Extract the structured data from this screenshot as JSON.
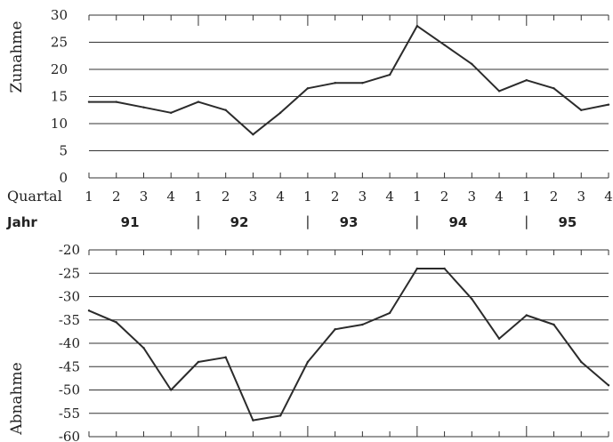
{
  "chart_data": [
    {
      "type": "line",
      "ylabel": "Zunahme",
      "ylim": [
        0,
        30
      ],
      "yticks": [
        0,
        5,
        10,
        15,
        20,
        25,
        30
      ],
      "grid": true,
      "x": [
        "91-Q1",
        "91-Q2",
        "91-Q3",
        "91-Q4",
        "92-Q1",
        "92-Q2",
        "92-Q3",
        "92-Q4",
        "93-Q1",
        "93-Q2",
        "93-Q3",
        "93-Q4",
        "94-Q1",
        "94-Q2",
        "94-Q3",
        "94-Q4",
        "95-Q1",
        "95-Q2",
        "95-Q3",
        "95-Q4"
      ],
      "values": [
        14,
        14,
        13,
        12,
        14,
        12.5,
        8,
        12,
        16.5,
        17.5,
        17.5,
        19,
        28,
        24.5,
        21,
        16,
        18,
        16.5,
        12.5,
        13.5
      ]
    },
    {
      "type": "line",
      "ylabel": "Abnahme",
      "ylim": [
        -60,
        -20
      ],
      "yticks": [
        -20,
        -25,
        -30,
        -35,
        -40,
        -45,
        -50,
        -55,
        -60
      ],
      "grid": true,
      "x": [
        "91-Q1",
        "91-Q2",
        "91-Q3",
        "91-Q4",
        "92-Q1",
        "92-Q2",
        "92-Q3",
        "92-Q4",
        "93-Q1",
        "93-Q2",
        "93-Q3",
        "93-Q4",
        "94-Q1",
        "94-Q2",
        "94-Q3",
        "94-Q4",
        "95-Q1",
        "95-Q2",
        "95-Q3",
        "95-Q4"
      ],
      "values": [
        -33,
        -35.5,
        -41,
        -50,
        -44,
        -43,
        -56.5,
        -55.5,
        -44,
        -37,
        -36,
        -33.5,
        -24,
        -24,
        -30.5,
        -39,
        -34,
        -36,
        -44,
        -49
      ]
    }
  ],
  "axis": {
    "quarter_label": "Quartal",
    "year_label": "Jahr",
    "quarters": [
      "1",
      "2",
      "3",
      "4",
      "1",
      "2",
      "3",
      "4",
      "1",
      "2",
      "3",
      "4",
      "1",
      "2",
      "3",
      "4",
      "1",
      "2",
      "3",
      "4"
    ],
    "years": [
      "91",
      "92",
      "93",
      "94",
      "95"
    ],
    "year_separator": "|"
  },
  "colors": {
    "line": "#2b2b2b",
    "grid": "#333333",
    "background": "#ffffff"
  }
}
